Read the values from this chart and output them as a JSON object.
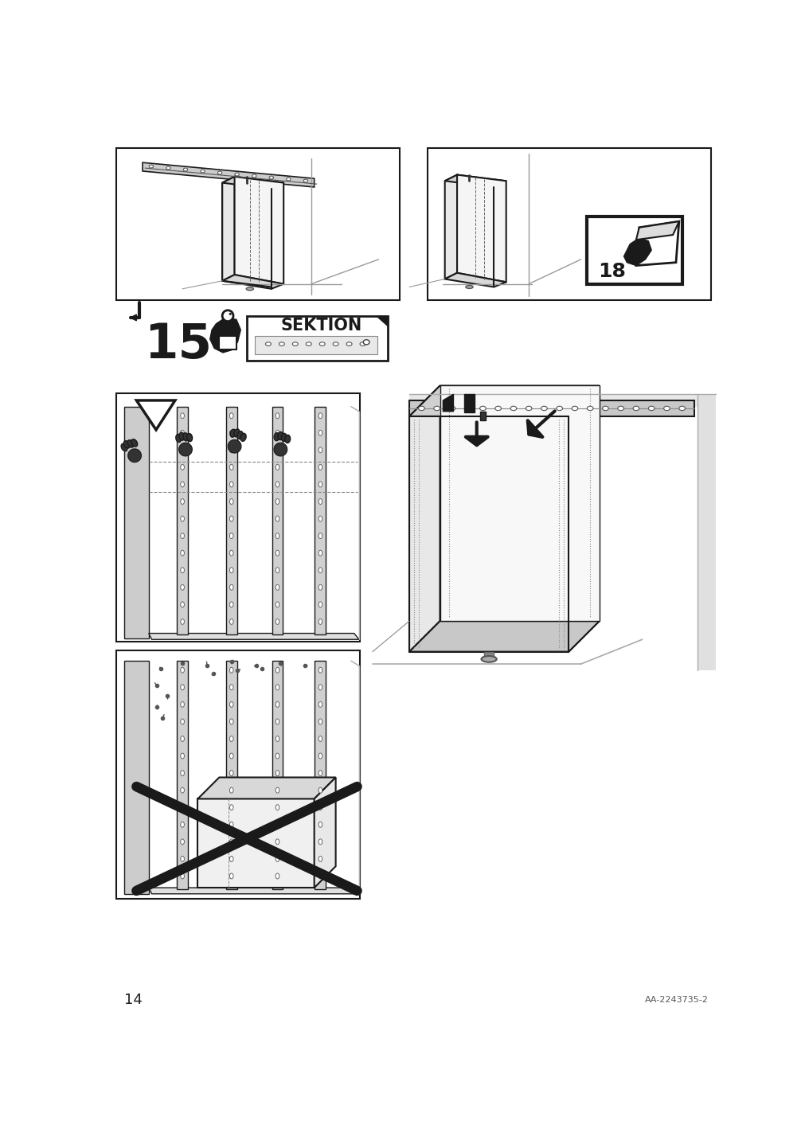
{
  "page_number": "14",
  "doc_number": "AA-2243735-2",
  "bg_color": "#ffffff",
  "line_color": "#1a1a1a",
  "gray1": "#cccccc",
  "gray2": "#aaaaaa",
  "gray3": "#e8e8e8",
  "gray4": "#888888",
  "gray5": "#f0f0f0"
}
